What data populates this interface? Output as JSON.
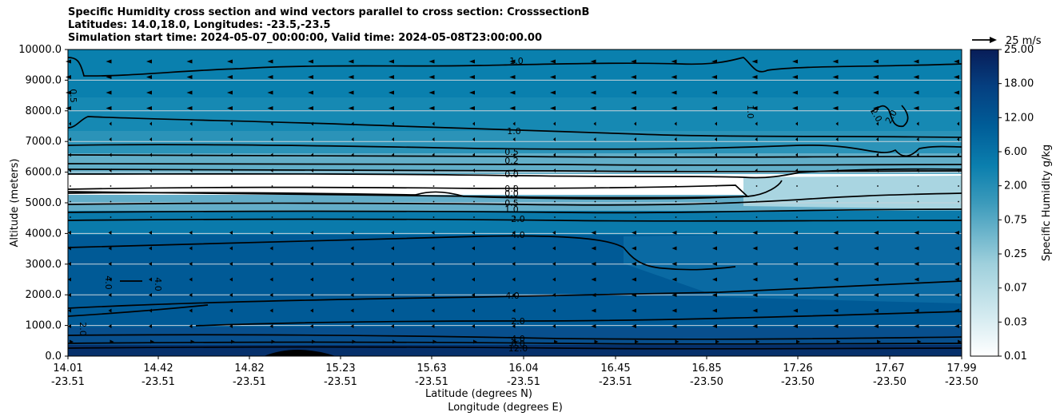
{
  "chart_data": {
    "type": "heatmap",
    "title_lines": [
      "Specific Humidity cross section and wind vectors parallel to cross section: CrosssectionB",
      "Latitudes: 14.0,18.0, Longitudes: -23.5,-23.5",
      "Simulation start time: 2024-05-07_00:00:00, Valid time: 2024-05-08T23:00:00.00"
    ],
    "ylabel": "Altitude (meters)",
    "xlabel_lat": "Latitude (degrees N)",
    "xlabel_lon": "Longitude (degrees E)",
    "ylim": [
      0,
      10000
    ],
    "y_ticks": [
      "0.0",
      "1000.0",
      "2000.0",
      "3000.0",
      "4000.0",
      "5000.0",
      "6000.0",
      "7000.0",
      "8000.0",
      "9000.0",
      "10000.0"
    ],
    "x_ticks": [
      {
        "lat": "14.01",
        "lon": "-23.51"
      },
      {
        "lat": "14.42",
        "lon": "-23.51"
      },
      {
        "lat": "14.82",
        "lon": "-23.51"
      },
      {
        "lat": "15.23",
        "lon": "-23.51"
      },
      {
        "lat": "15.63",
        "lon": "-23.51"
      },
      {
        "lat": "16.04",
        "lon": "-23.51"
      },
      {
        "lat": "16.45",
        "lon": "-23.51"
      },
      {
        "lat": "16.85",
        "lon": "-23.50"
      },
      {
        "lat": "17.26",
        "lon": "-23.50"
      },
      {
        "lat": "17.67",
        "lon": "-23.50"
      },
      {
        "lat": "17.99",
        "lon": "-23.50"
      }
    ],
    "colorbar": {
      "label": "Specific Humidity g/kg",
      "tick_labels": [
        "0.01",
        "0.03",
        "0.07",
        "0.25",
        "0.75",
        "2.00",
        "6.00",
        "12.00",
        "18.00",
        "25.00"
      ]
    },
    "quiver_key": "25 m/s",
    "contour_labels": [
      "1.0",
      "1.0",
      "0.5",
      "0.2",
      "0.0",
      "0.0",
      "0.5",
      "1.0",
      "2.0",
      "4.0",
      "4.0",
      "2.0",
      "4.0",
      "6.0",
      "12.0",
      "4.0",
      "4.0",
      "2.0",
      "2.0",
      "0.5",
      "2.0",
      "1.0",
      "0.0"
    ],
    "colors": {
      "low": "#ffffff",
      "high": "#08306b"
    }
  }
}
